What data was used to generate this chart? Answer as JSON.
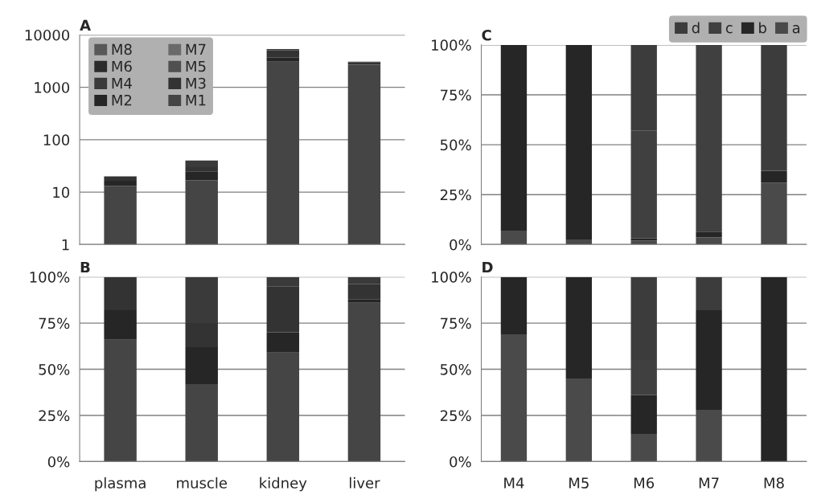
{
  "chart_data": [
    {
      "type": "bar",
      "title": "A",
      "stacked": true,
      "log": "y",
      "categories": [
        null,
        null,
        null,
        null
      ],
      "ylim": [
        1,
        10000
      ],
      "yticks": [
        1,
        10,
        100,
        1000,
        10000
      ],
      "grid": "y",
      "legend": "top left",
      "tick_labels": "y",
      "series": [
        {
          "name": "M1",
          "color": "#454545",
          "values": [
            13.2,
            16.8,
            3100,
            2670
          ]
        },
        {
          "name": "M2",
          "color": "#262626",
          "values": [
            3.2,
            8,
            600,
            60
          ]
        },
        {
          "name": "M3",
          "color": "#333333",
          "values": [
            3.6,
            5.2,
            1400,
            250
          ]
        },
        {
          "name": "M4",
          "color": "#3a3a3a",
          "values": [
            null,
            10,
            300,
            120
          ]
        },
        {
          "name": "M5",
          "color": "#505050",
          "values": [
            null,
            null,
            null,
            null
          ]
        },
        {
          "name": "M6",
          "color": "#2c2c2c",
          "values": [
            null,
            null,
            null,
            null
          ]
        },
        {
          "name": "M7",
          "color": "#6a6a6a",
          "values": [
            null,
            null,
            null,
            null
          ]
        },
        {
          "name": "M8",
          "color": "#585858",
          "values": [
            null,
            null,
            null,
            null
          ]
        }
      ]
    },
    {
      "type": "bar",
      "title": "B",
      "stacked": true,
      "categories": [
        "plasma",
        "muscle",
        "kidney",
        "liver"
      ],
      "ylim": [
        0,
        100
      ],
      "yticks": [
        {
          "value": 0,
          "label": "0%"
        },
        {
          "value": 25,
          "label": "25%"
        },
        {
          "value": 50,
          "label": "50%"
        },
        {
          "value": 75,
          "label": "75%"
        },
        {
          "value": 100,
          "label": "100%"
        }
      ],
      "grid": "y",
      "series": [
        {
          "color": "#454545",
          "values": [
            66,
            42,
            59,
            86
          ]
        },
        {
          "color": "#262626",
          "values": [
            16,
            20,
            11,
            2
          ]
        },
        {
          "color": "#333333",
          "values": [
            18,
            13,
            25,
            8
          ]
        },
        {
          "color": "#3a3a3a",
          "values": [
            0,
            25,
            5,
            4
          ]
        }
      ]
    },
    {
      "type": "bar",
      "title": "C",
      "stacked": true,
      "categories": [
        null,
        null,
        null,
        null,
        null
      ],
      "ylim": [
        0,
        100
      ],
      "yticks": [
        {
          "value": 0,
          "label": "0%"
        },
        {
          "value": 25,
          "label": "25%"
        },
        {
          "value": 50,
          "label": "50%"
        },
        {
          "value": 75,
          "label": "75%"
        },
        {
          "value": 100,
          "label": "100%"
        }
      ],
      "grid": "y",
      "legend": "top right",
      "tick_labels": "y",
      "series": [
        {
          "name": "a",
          "color": "#4a4a4a",
          "values": [
            7,
            2.5,
            2,
            3.5,
            31
          ]
        },
        {
          "name": "b",
          "color": "#262626",
          "values": [
            93,
            97.5,
            1,
            3,
            6
          ]
        },
        {
          "name": "c",
          "color": "#404040",
          "values": [
            0,
            0,
            54,
            93.5,
            0
          ]
        },
        {
          "name": "d",
          "color": "#3c3c3c",
          "values": [
            0,
            0,
            43,
            0,
            63
          ]
        }
      ]
    },
    {
      "type": "bar",
      "title": "D",
      "stacked": true,
      "categories": [
        "M4",
        "M5",
        "M6",
        "M7",
        "M8"
      ],
      "ylim": [
        0,
        100
      ],
      "yticks": [
        {
          "value": 0,
          "label": "0%"
        },
        {
          "value": 25,
          "label": "25%"
        },
        {
          "value": 50,
          "label": "50%"
        },
        {
          "value": 75,
          "label": "75%"
        },
        {
          "value": 100,
          "label": "100%"
        }
      ],
      "grid": "y",
      "series": [
        {
          "color": "#4a4a4a",
          "values": [
            69,
            45,
            15,
            28,
            0
          ]
        },
        {
          "color": "#262626",
          "values": [
            31,
            55,
            21,
            54,
            100
          ]
        },
        {
          "color": "#404040",
          "values": [
            0,
            0,
            19,
            0,
            0
          ]
        },
        {
          "color": "#3c3c3c",
          "values": [
            0,
            0,
            45,
            18,
            0
          ]
        }
      ]
    }
  ]
}
